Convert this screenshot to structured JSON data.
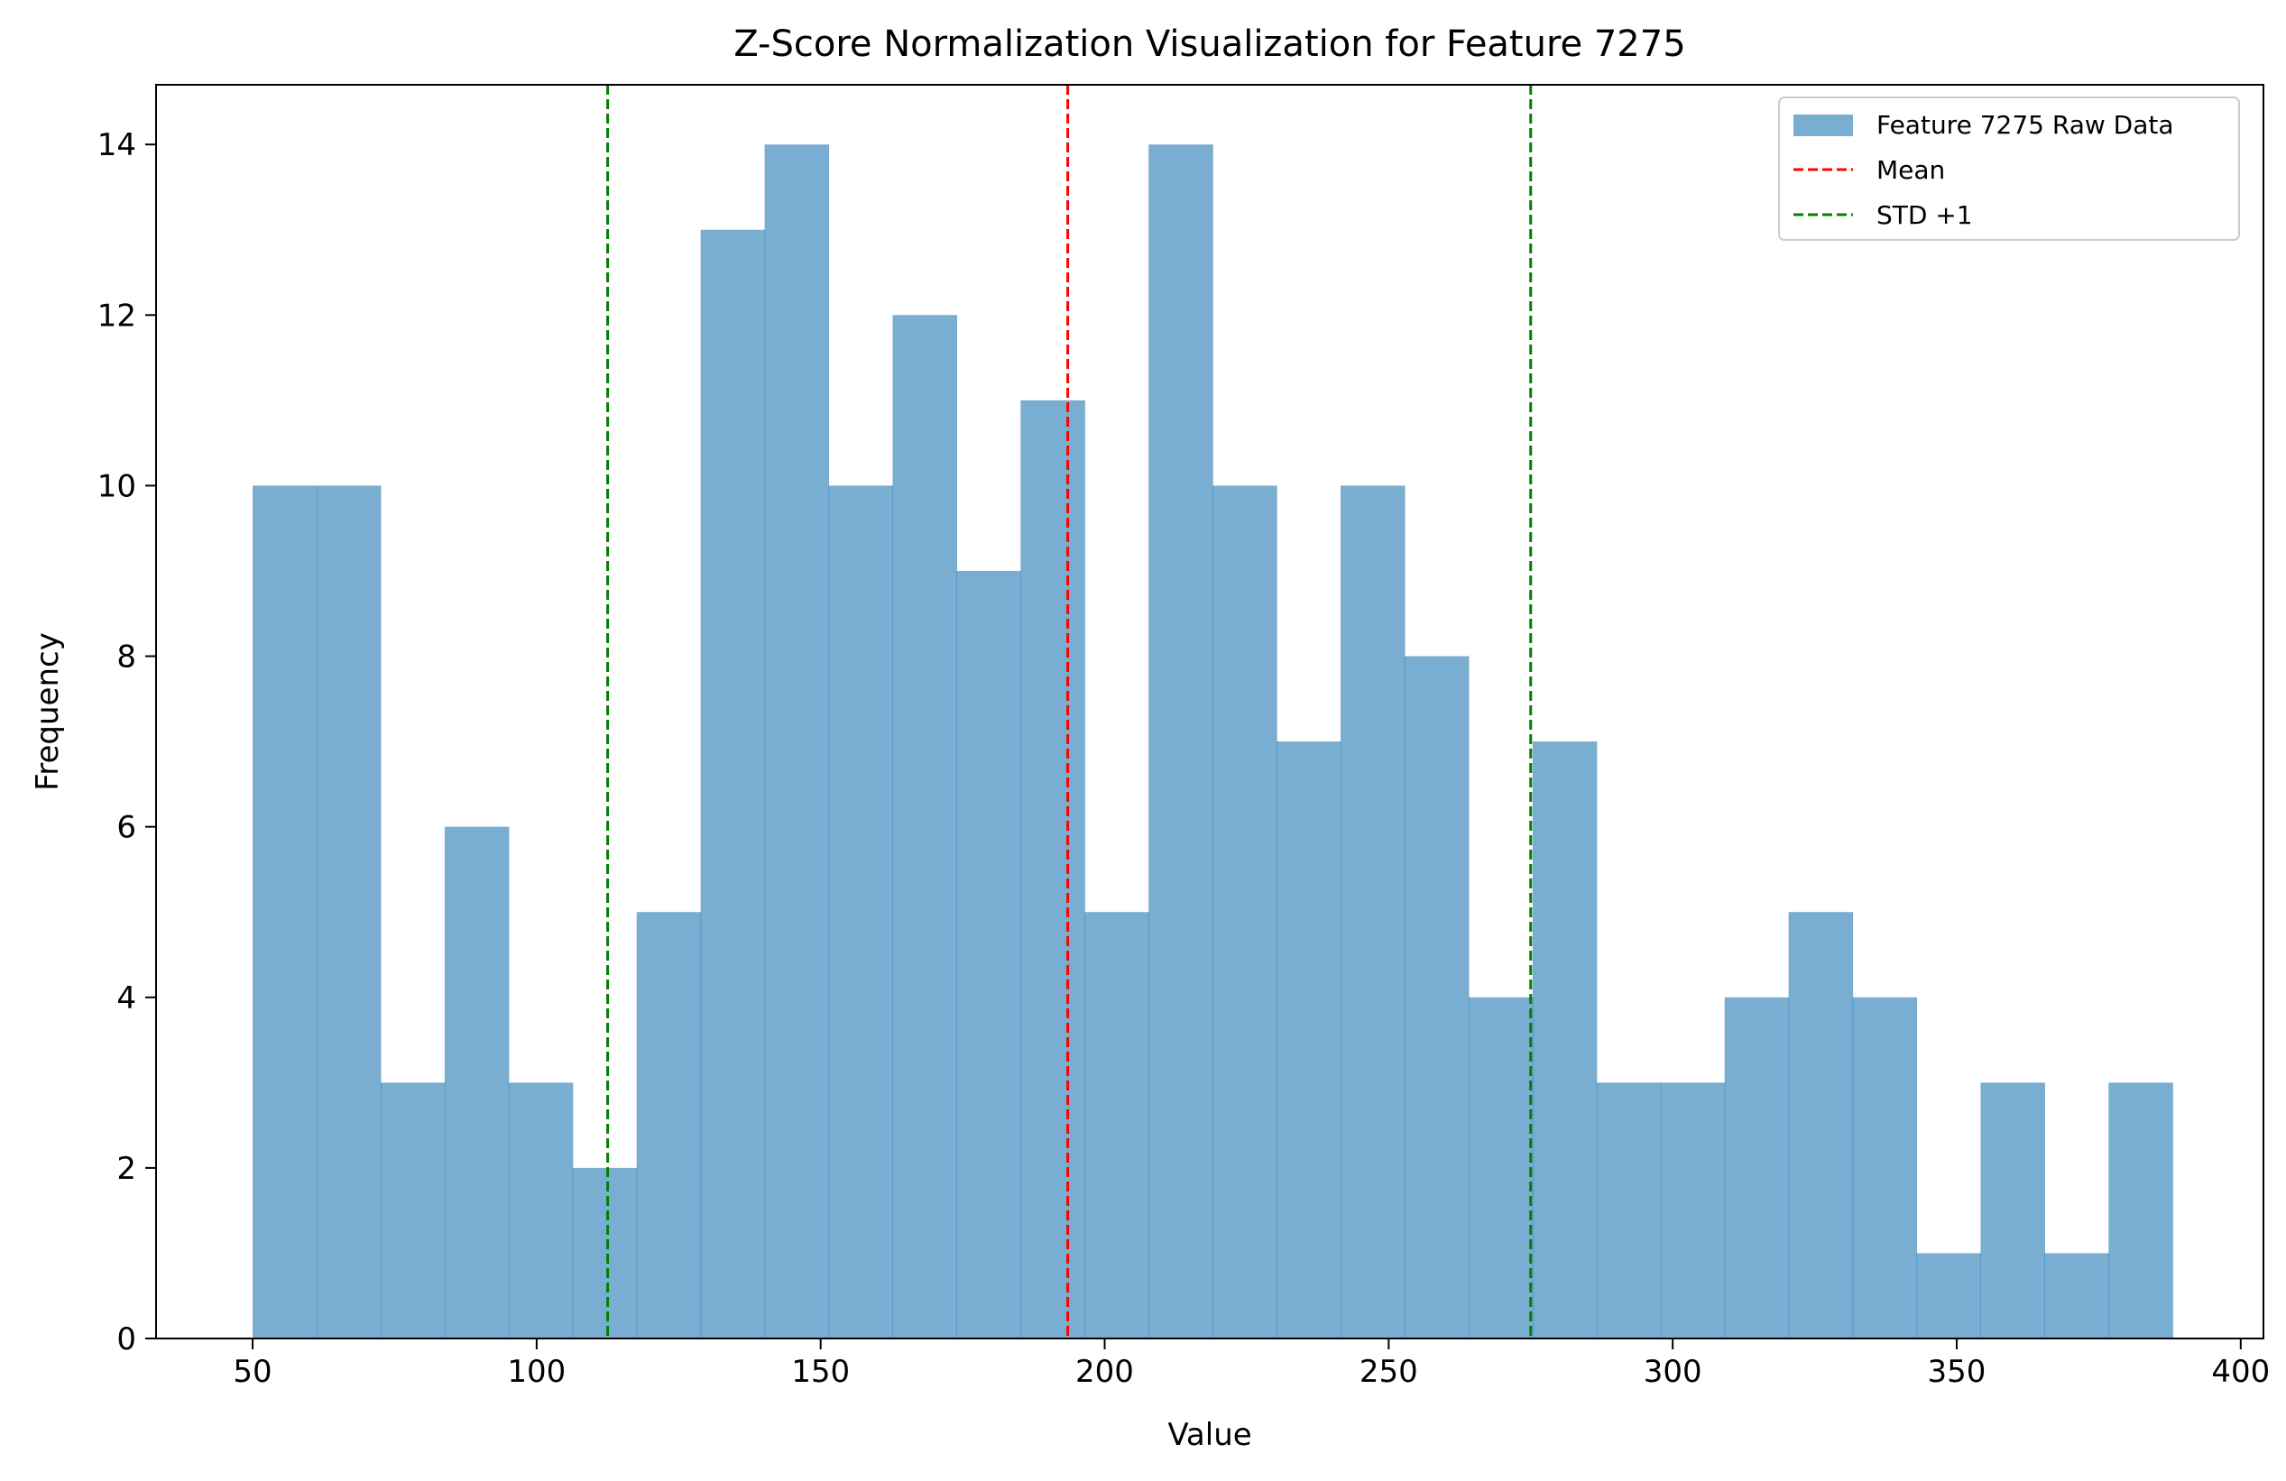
{
  "chart_data": {
    "type": "histogram",
    "title": "Z-Score Normalization Visualization for Feature 7275",
    "xlabel": "Value",
    "ylabel": "Frequency",
    "xlim": [
      33,
      404
    ],
    "ylim": [
      0,
      14.7
    ],
    "x_ticks": [
      50,
      100,
      150,
      200,
      250,
      300,
      350,
      400
    ],
    "y_ticks": [
      0,
      2,
      4,
      6,
      8,
      10,
      12,
      14
    ],
    "bin_range": [
      50.0,
      388.0
    ],
    "bin_count": 30,
    "counts": [
      10,
      10,
      3,
      6,
      3,
      2,
      5,
      13,
      14,
      10,
      12,
      9,
      11,
      5,
      14,
      10,
      7,
      10,
      8,
      4,
      7,
      3,
      3,
      4,
      5,
      4,
      1,
      3,
      1,
      3
    ],
    "bar_color": "#1f77b4",
    "bar_alpha": 0.6,
    "lines": [
      {
        "name": "Mean",
        "x": 193.5,
        "color": "#ff0000",
        "style": "dashed"
      },
      {
        "name": "STD +1",
        "x": 112.5,
        "color": "#008000",
        "style": "dashed"
      },
      {
        "name": "STD +1",
        "x": 275.0,
        "color": "#008000",
        "style": "dashed"
      }
    ],
    "legend": {
      "position": "top-right",
      "entries": [
        {
          "label": "Feature 7275 Raw Data",
          "kind": "patch",
          "color": "#1f77b4"
        },
        {
          "label": "Mean",
          "kind": "dashed-line",
          "color": "#ff0000"
        },
        {
          "label": "STD +1",
          "kind": "dashed-line",
          "color": "#008000"
        }
      ]
    },
    "grid": false
  }
}
